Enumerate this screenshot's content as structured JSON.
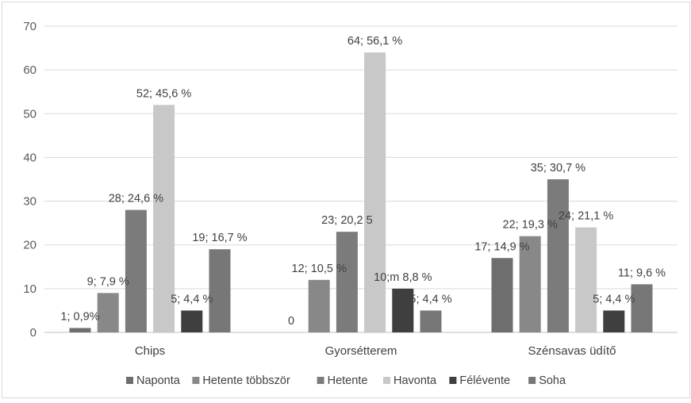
{
  "chart_data": {
    "type": "bar",
    "title": "",
    "xlabel": "",
    "ylabel": "",
    "ylim": [
      0,
      70
    ],
    "yticks": [
      0,
      10,
      20,
      30,
      40,
      50,
      60,
      70
    ],
    "grid": true,
    "legend_position": "bottom",
    "categories": [
      "Chips",
      "Gyorsétterem",
      "Szénsavas üdítő"
    ],
    "series": [
      {
        "name": "Naponta",
        "color": "#6e6e6e",
        "values": [
          1,
          0,
          17
        ],
        "labels": [
          "1; 0,9%",
          "0",
          "17; 14,9 %"
        ]
      },
      {
        "name": "Hetente többször",
        "color": "#888888",
        "values": [
          9,
          12,
          22
        ],
        "labels": [
          "9; 7,9 %",
          "12; 10,5 %",
          "22; 19,3 %"
        ]
      },
      {
        "name": "Hetente",
        "color": "#7b7b7b",
        "values": [
          28,
          23,
          35
        ],
        "labels": [
          "28; 24,6 %",
          "23; 20,2 5",
          "35; 30,7 %"
        ]
      },
      {
        "name": "Havonta",
        "color": "#c8c8c8",
        "values": [
          52,
          64,
          24
        ],
        "labels": [
          "52; 45,6 %",
          "64; 56,1 %",
          "24; 21,1 %"
        ]
      },
      {
        "name": "Félévente",
        "color": "#3f3f3f",
        "values": [
          5,
          10,
          5
        ],
        "labels": [
          "5; 4,4 %",
          "10;m 8,8 %",
          "5; 4,4 %"
        ]
      },
      {
        "name": "Soha",
        "color": "#777777",
        "values": [
          19,
          5,
          11
        ],
        "labels": [
          "19; 16,7 %",
          "5; 4,4 %",
          "11; 9,6 %"
        ]
      }
    ]
  }
}
